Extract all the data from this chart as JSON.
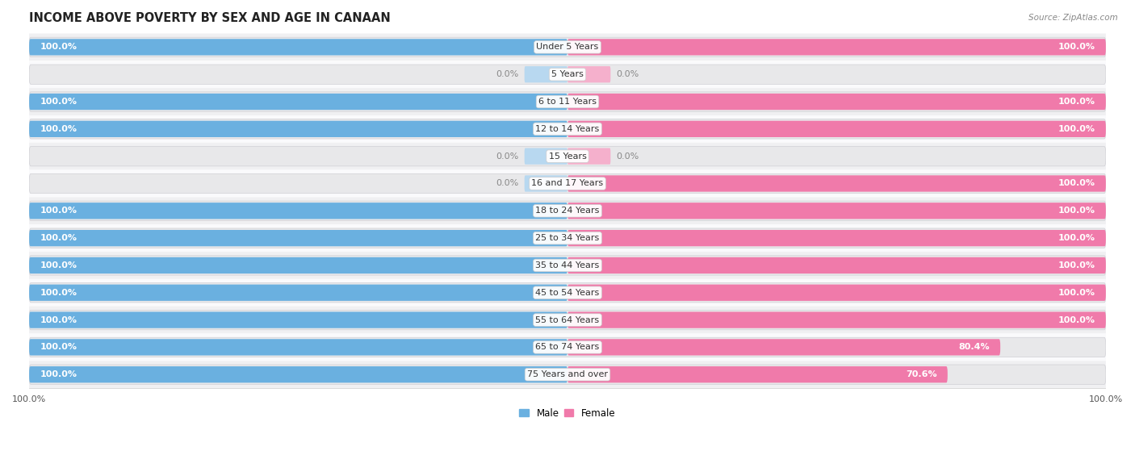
{
  "title": "INCOME ABOVE POVERTY BY SEX AND AGE IN CANAAN",
  "source": "Source: ZipAtlas.com",
  "categories": [
    "Under 5 Years",
    "5 Years",
    "6 to 11 Years",
    "12 to 14 Years",
    "15 Years",
    "16 and 17 Years",
    "18 to 24 Years",
    "25 to 34 Years",
    "35 to 44 Years",
    "45 to 54 Years",
    "55 to 64 Years",
    "65 to 74 Years",
    "75 Years and over"
  ],
  "male": [
    100.0,
    0.0,
    100.0,
    100.0,
    0.0,
    0.0,
    100.0,
    100.0,
    100.0,
    100.0,
    100.0,
    100.0,
    100.0
  ],
  "female": [
    100.0,
    0.0,
    100.0,
    100.0,
    0.0,
    100.0,
    100.0,
    100.0,
    100.0,
    100.0,
    100.0,
    80.4,
    70.6
  ],
  "male_color": "#6ab0e0",
  "female_color": "#f07aaa",
  "male_zero_color": "#b8d8f0",
  "female_zero_color": "#f5b0cc",
  "track_color": "#e8e8ea",
  "track_border_color": "#d0d0d5",
  "label_outside_color": "#888888",
  "title_fontsize": 10.5,
  "label_fontsize": 8,
  "category_fontsize": 8,
  "axis_fontsize": 8,
  "legend_fontsize": 8.5
}
